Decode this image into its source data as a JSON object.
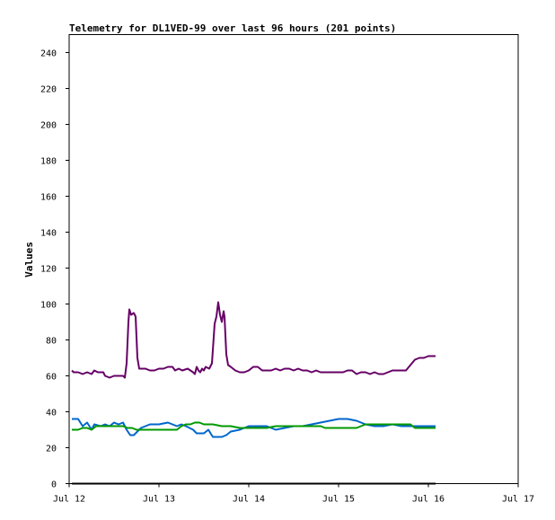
{
  "chart_data": {
    "type": "line",
    "title": "Telemetry for DL1VED-99 over last 96 hours (201 points)",
    "xlabel": "",
    "ylabel": "Values",
    "xlim": [
      0,
      5
    ],
    "ylim": [
      0,
      250
    ],
    "x_ticks": [
      {
        "value": 0,
        "label": "Jul 12"
      },
      {
        "value": 1,
        "label": "Jul 13"
      },
      {
        "value": 2,
        "label": "Jul 14"
      },
      {
        "value": 3,
        "label": "Jul 15"
      },
      {
        "value": 4,
        "label": "Jul 16"
      },
      {
        "value": 5,
        "label": "Jul 17"
      }
    ],
    "y_ticks": [
      0,
      20,
      40,
      60,
      80,
      100,
      120,
      140,
      160,
      180,
      200,
      220,
      240
    ],
    "grid": false,
    "legend": "none",
    "series": [
      {
        "color": "#660066",
        "points": [
          [
            0.03,
            63
          ],
          [
            0.05,
            62
          ],
          [
            0.1,
            62
          ],
          [
            0.15,
            61
          ],
          [
            0.2,
            62
          ],
          [
            0.25,
            61
          ],
          [
            0.28,
            63
          ],
          [
            0.32,
            62
          ],
          [
            0.38,
            62
          ],
          [
            0.4,
            60
          ],
          [
            0.45,
            59
          ],
          [
            0.5,
            60
          ],
          [
            0.55,
            60
          ],
          [
            0.6,
            60
          ],
          [
            0.62,
            59
          ],
          [
            0.64,
            67
          ],
          [
            0.66,
            90
          ],
          [
            0.67,
            97
          ],
          [
            0.69,
            94
          ],
          [
            0.72,
            95
          ],
          [
            0.74,
            93
          ],
          [
            0.76,
            70
          ],
          [
            0.78,
            64
          ],
          [
            0.85,
            64
          ],
          [
            0.9,
            63
          ],
          [
            0.95,
            63
          ],
          [
            1.0,
            64
          ],
          [
            1.05,
            64
          ],
          [
            1.1,
            65
          ],
          [
            1.15,
            65
          ],
          [
            1.18,
            63
          ],
          [
            1.22,
            64
          ],
          [
            1.26,
            63
          ],
          [
            1.32,
            64
          ],
          [
            1.38,
            62
          ],
          [
            1.4,
            61
          ],
          [
            1.42,
            65
          ],
          [
            1.44,
            63
          ],
          [
            1.46,
            62
          ],
          [
            1.48,
            64
          ],
          [
            1.5,
            63
          ],
          [
            1.52,
            65
          ],
          [
            1.56,
            64
          ],
          [
            1.59,
            67
          ],
          [
            1.62,
            89
          ],
          [
            1.64,
            93
          ],
          [
            1.66,
            101
          ],
          [
            1.68,
            94
          ],
          [
            1.7,
            90
          ],
          [
            1.72,
            96
          ],
          [
            1.73,
            93
          ],
          [
            1.75,
            72
          ],
          [
            1.77,
            66
          ],
          [
            1.8,
            65
          ],
          [
            1.85,
            63
          ],
          [
            1.9,
            62
          ],
          [
            1.95,
            62
          ],
          [
            2.0,
            63
          ],
          [
            2.05,
            65
          ],
          [
            2.1,
            65
          ],
          [
            2.15,
            63
          ],
          [
            2.2,
            63
          ],
          [
            2.25,
            63
          ],
          [
            2.3,
            64
          ],
          [
            2.35,
            63
          ],
          [
            2.4,
            64
          ],
          [
            2.45,
            64
          ],
          [
            2.5,
            63
          ],
          [
            2.55,
            64
          ],
          [
            2.6,
            63
          ],
          [
            2.65,
            63
          ],
          [
            2.7,
            62
          ],
          [
            2.75,
            63
          ],
          [
            2.8,
            62
          ],
          [
            2.85,
            62
          ],
          [
            2.9,
            62
          ],
          [
            2.95,
            62
          ],
          [
            3.0,
            62
          ],
          [
            3.05,
            62
          ],
          [
            3.1,
            63
          ],
          [
            3.15,
            63
          ],
          [
            3.2,
            61
          ],
          [
            3.25,
            62
          ],
          [
            3.3,
            62
          ],
          [
            3.35,
            61
          ],
          [
            3.4,
            62
          ],
          [
            3.45,
            61
          ],
          [
            3.5,
            61
          ],
          [
            3.55,
            62
          ],
          [
            3.6,
            63
          ],
          [
            3.65,
            63
          ],
          [
            3.7,
            63
          ],
          [
            3.75,
            63
          ],
          [
            3.8,
            66
          ],
          [
            3.85,
            69
          ],
          [
            3.9,
            70
          ],
          [
            3.95,
            70
          ],
          [
            4.0,
            71
          ],
          [
            4.05,
            71
          ],
          [
            4.08,
            71
          ]
        ]
      },
      {
        "color": "#0066cc",
        "points": [
          [
            0.03,
            36
          ],
          [
            0.1,
            36
          ],
          [
            0.15,
            32
          ],
          [
            0.2,
            34
          ],
          [
            0.25,
            30
          ],
          [
            0.28,
            33
          ],
          [
            0.35,
            32
          ],
          [
            0.4,
            33
          ],
          [
            0.45,
            32
          ],
          [
            0.5,
            34
          ],
          [
            0.55,
            33
          ],
          [
            0.6,
            34
          ],
          [
            0.64,
            30
          ],
          [
            0.68,
            27
          ],
          [
            0.72,
            27
          ],
          [
            0.76,
            29
          ],
          [
            0.8,
            31
          ],
          [
            0.9,
            33
          ],
          [
            1.0,
            33
          ],
          [
            1.1,
            34
          ],
          [
            1.2,
            32
          ],
          [
            1.25,
            33
          ],
          [
            1.3,
            32
          ],
          [
            1.38,
            30
          ],
          [
            1.42,
            28
          ],
          [
            1.5,
            28
          ],
          [
            1.55,
            30
          ],
          [
            1.6,
            26
          ],
          [
            1.7,
            26
          ],
          [
            1.75,
            27
          ],
          [
            1.8,
            29
          ],
          [
            1.9,
            30
          ],
          [
            2.0,
            32
          ],
          [
            2.1,
            32
          ],
          [
            2.2,
            32
          ],
          [
            2.3,
            30
          ],
          [
            2.4,
            31
          ],
          [
            2.5,
            32
          ],
          [
            2.6,
            32
          ],
          [
            2.7,
            33
          ],
          [
            2.8,
            34
          ],
          [
            2.9,
            35
          ],
          [
            3.0,
            36
          ],
          [
            3.1,
            36
          ],
          [
            3.2,
            35
          ],
          [
            3.3,
            33
          ],
          [
            3.4,
            32
          ],
          [
            3.5,
            32
          ],
          [
            3.6,
            33
          ],
          [
            3.7,
            32
          ],
          [
            3.8,
            32
          ],
          [
            3.9,
            32
          ],
          [
            4.0,
            32
          ],
          [
            4.08,
            32
          ]
        ]
      },
      {
        "color": "#009900",
        "points": [
          [
            0.03,
            30
          ],
          [
            0.1,
            30
          ],
          [
            0.15,
            31
          ],
          [
            0.2,
            31
          ],
          [
            0.25,
            30
          ],
          [
            0.3,
            32
          ],
          [
            0.35,
            32
          ],
          [
            0.45,
            32
          ],
          [
            0.55,
            32
          ],
          [
            0.6,
            32
          ],
          [
            0.65,
            31
          ],
          [
            0.7,
            31
          ],
          [
            0.75,
            30
          ],
          [
            0.8,
            30
          ],
          [
            0.9,
            30
          ],
          [
            1.0,
            30
          ],
          [
            1.1,
            30
          ],
          [
            1.2,
            30
          ],
          [
            1.25,
            32
          ],
          [
            1.3,
            33
          ],
          [
            1.35,
            33
          ],
          [
            1.4,
            34
          ],
          [
            1.45,
            34
          ],
          [
            1.5,
            33
          ],
          [
            1.55,
            33
          ],
          [
            1.6,
            33
          ],
          [
            1.7,
            32
          ],
          [
            1.8,
            32
          ],
          [
            1.9,
            31
          ],
          [
            2.0,
            31
          ],
          [
            2.1,
            31
          ],
          [
            2.2,
            31
          ],
          [
            2.3,
            32
          ],
          [
            2.4,
            32
          ],
          [
            2.5,
            32
          ],
          [
            2.6,
            32
          ],
          [
            2.7,
            32
          ],
          [
            2.8,
            32
          ],
          [
            2.85,
            31
          ],
          [
            2.9,
            31
          ],
          [
            3.0,
            31
          ],
          [
            3.1,
            31
          ],
          [
            3.2,
            31
          ],
          [
            3.3,
            33
          ],
          [
            3.4,
            33
          ],
          [
            3.5,
            33
          ],
          [
            3.6,
            33
          ],
          [
            3.7,
            33
          ],
          [
            3.8,
            33
          ],
          [
            3.85,
            31
          ],
          [
            3.9,
            31
          ],
          [
            4.0,
            31
          ],
          [
            4.08,
            31
          ]
        ]
      },
      {
        "color": "#000000",
        "points": [
          [
            0.03,
            0
          ],
          [
            4.08,
            0
          ]
        ]
      }
    ]
  }
}
